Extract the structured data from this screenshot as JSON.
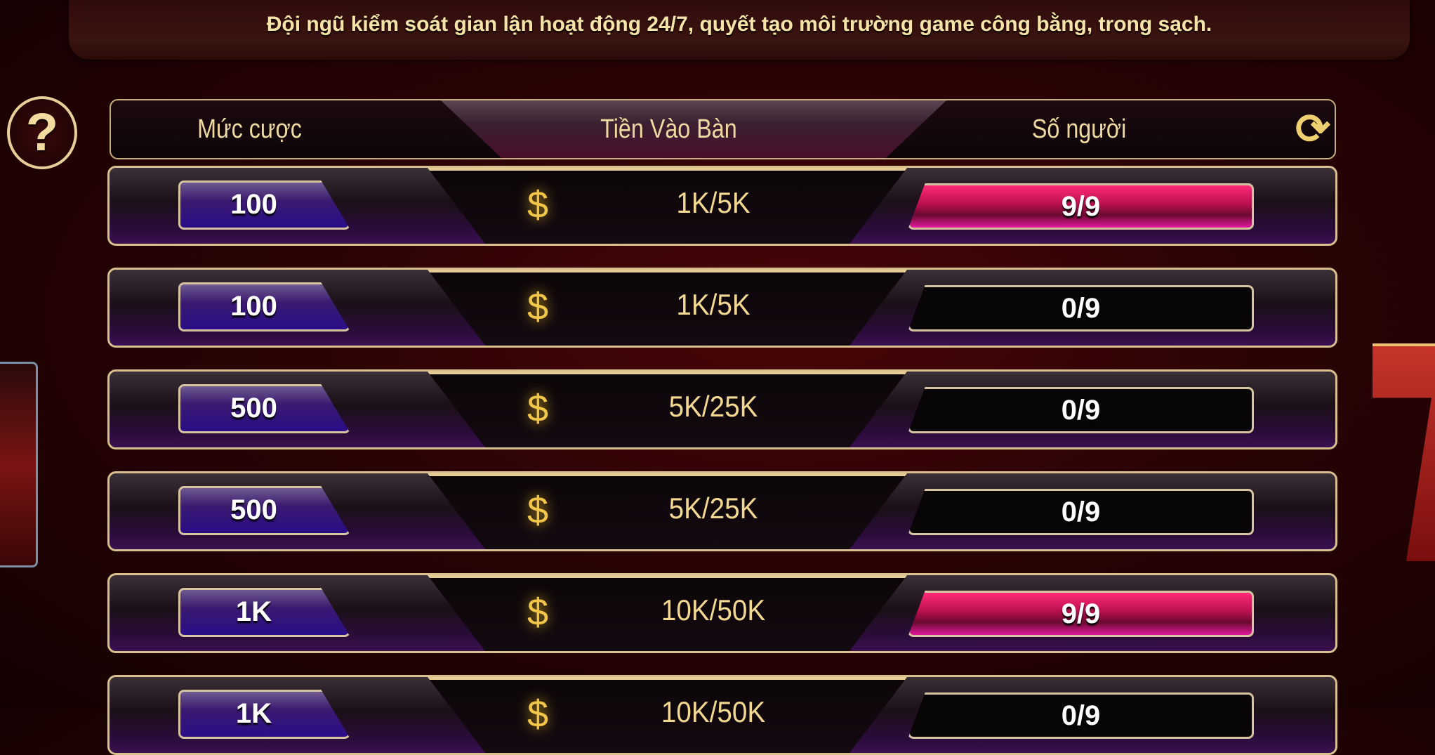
{
  "banner": {
    "text": "Đội ngũ kiểm soát gian lận hoạt động 24/7, quyết tạo môi trường game công bằng, trong sạch."
  },
  "help_icon": "question-mark-icon",
  "header": {
    "bet_label": "Mức cược",
    "entry_label": "Tiền Vào Bàn",
    "players_label": "Số người",
    "refresh_icon": "refresh-icon"
  },
  "colors": {
    "gold": "#f3d892",
    "full_table": "#ff2a78",
    "bet_badge": "#3a1a70"
  },
  "rows": [
    {
      "bet": "100",
      "entry": "1K/5K",
      "players": "9/9",
      "full": true
    },
    {
      "bet": "100",
      "entry": "1K/5K",
      "players": "0/9",
      "full": false
    },
    {
      "bet": "500",
      "entry": "5K/25K",
      "players": "0/9",
      "full": false
    },
    {
      "bet": "500",
      "entry": "5K/25K",
      "players": "0/9",
      "full": false
    },
    {
      "bet": "1K",
      "entry": "10K/50K",
      "players": "9/9",
      "full": true
    },
    {
      "bet": "1K",
      "entry": "10K/50K",
      "players": "0/9",
      "full": false
    }
  ]
}
